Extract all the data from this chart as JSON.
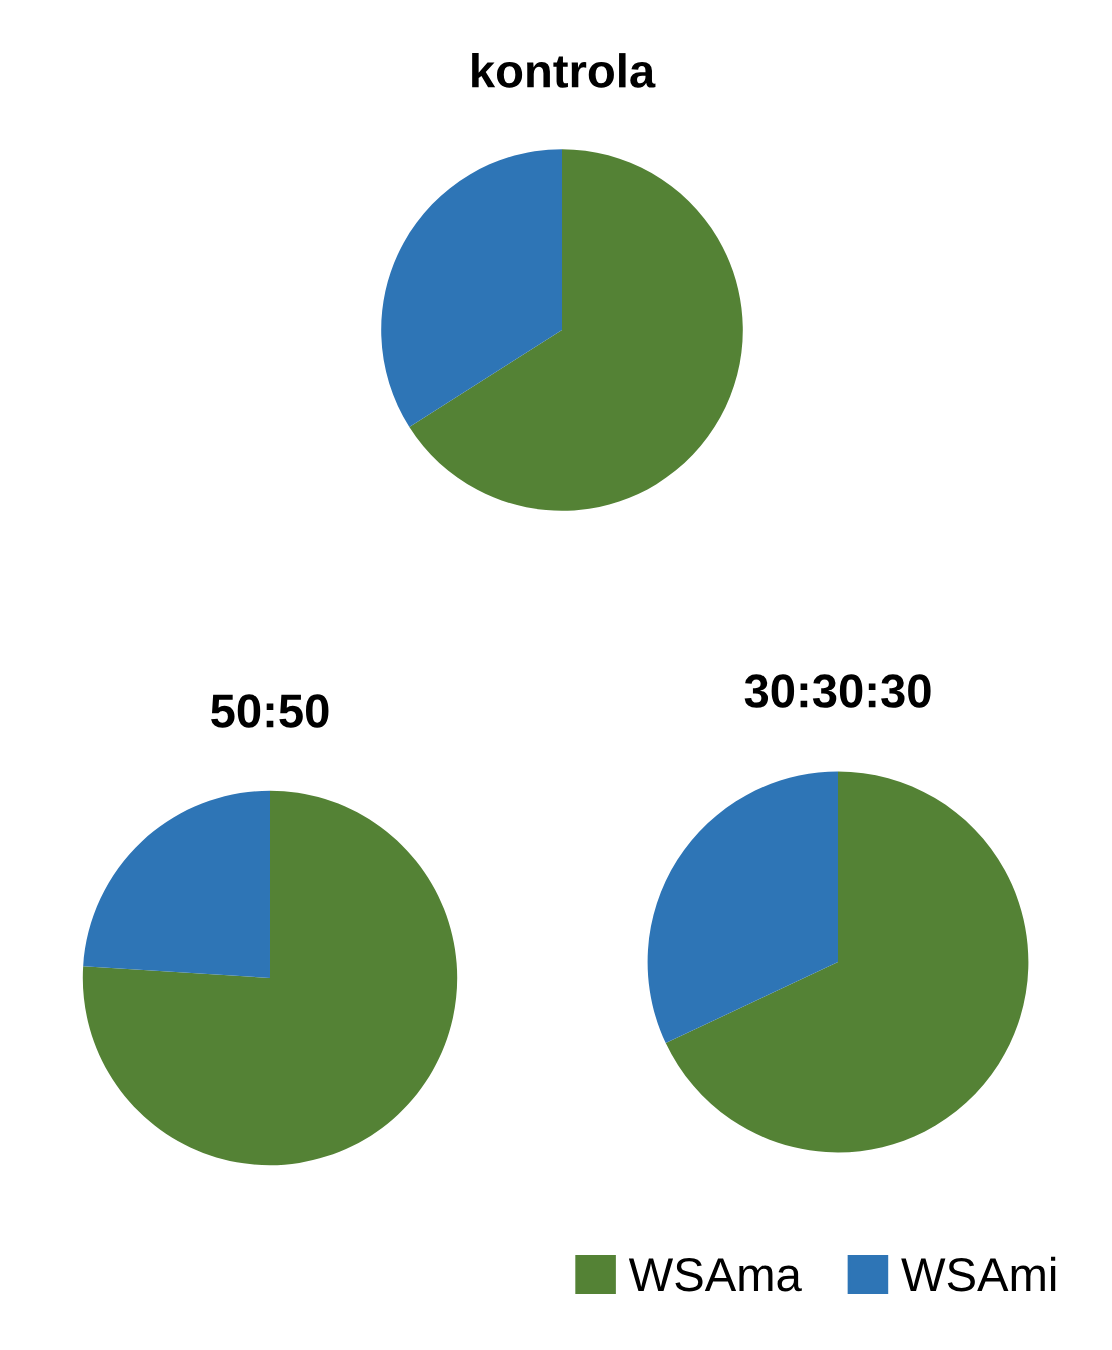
{
  "chart_data": [
    {
      "type": "pie",
      "title": "kontrola",
      "categories": [
        "WSAma",
        "WSAmi"
      ],
      "values": [
        66,
        34
      ],
      "colors": [
        "#548235",
        "#2e75b6"
      ],
      "legend": "bottom"
    },
    {
      "type": "pie",
      "title": "50:50",
      "categories": [
        null,
        null
      ],
      "values": [
        76,
        24
      ],
      "colors": [
        "#548235",
        "#2e75b6"
      ]
    },
    {
      "type": "pie",
      "title": "30:30:30",
      "categories": [
        null,
        null
      ],
      "values": [
        68,
        32
      ],
      "colors": [
        "#548235",
        "#2e75b6"
      ]
    }
  ]
}
